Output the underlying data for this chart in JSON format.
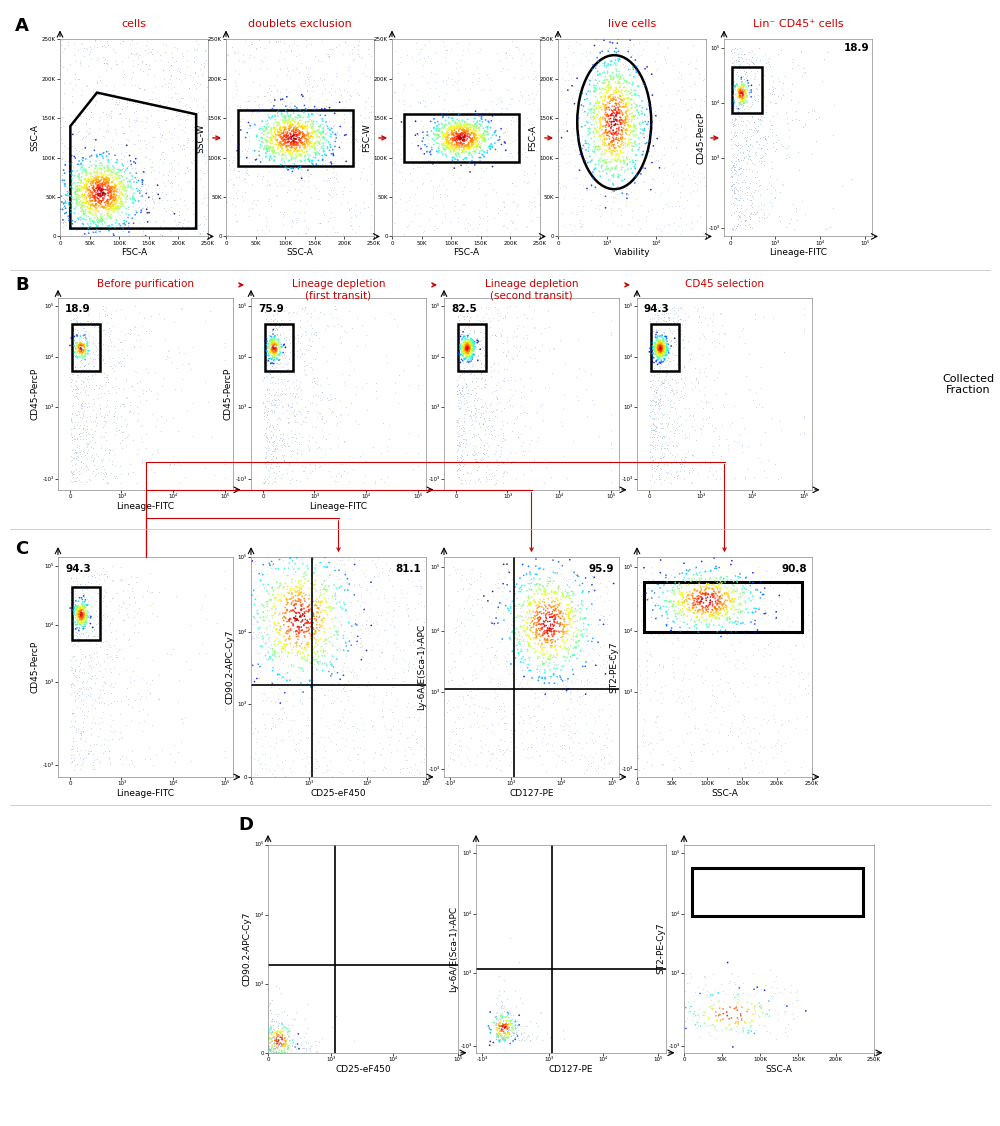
{
  "panel_A_label": "A",
  "panel_B_label": "B",
  "panel_C_label": "C",
  "panel_D_label": "D",
  "red_color": "#cc0000",
  "black": "#000000",
  "white": "#ffffff",
  "A_titles": [
    "cells",
    "doublets exclusion",
    "live cells",
    "Lin⁻ CD45⁺ cells"
  ],
  "A_xlabels": [
    "FSC-A",
    "SSC-A",
    "FSC-A",
    "Viability",
    "Lineage-FITC"
  ],
  "A_ylabels": [
    "SSC-A",
    "SSC-W",
    "FSC-W",
    "FSC-A",
    "CD45-PercP"
  ],
  "A_percentage": "18.9",
  "B_header_labels": [
    "Before purification",
    "Lineage depletion\n(first transit)",
    "Lineage depletion\n(second transit)",
    "CD45 selection"
  ],
  "B_percentages": [
    "18.9",
    "75.9",
    "82.5",
    "94.3"
  ],
  "B_collected": "Collected\nFraction",
  "C_percentages": [
    "94.3",
    "81.1",
    "95.9",
    "90.8"
  ],
  "C_xlabels": [
    "Lineage-FITC",
    "CD25-eF450",
    "CD127-PE",
    "SSC-A"
  ],
  "C_ylabels": [
    "CD45-PercP",
    "CD90.2-APC-Cy7",
    "Ly-6A/E(Sca-1)-APC",
    "ST2-PE-Cy7"
  ],
  "D_xlabels": [
    "CD25-eF450",
    "CD127-PE",
    "SSC-A"
  ],
  "D_ylabels": [
    "CD90.2-APC-Cy7",
    "Ly-6A/E(Sca-1)-APC",
    "ST2-PE-Cy7"
  ]
}
